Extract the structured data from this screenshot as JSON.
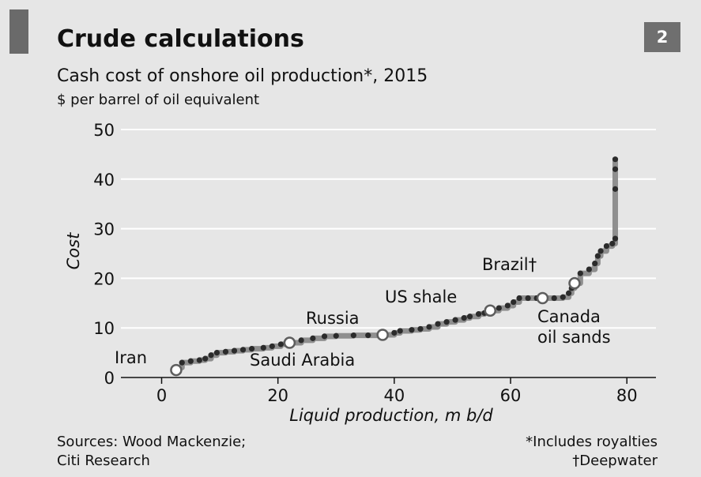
{
  "header": {
    "title": "Crude calculations",
    "subtitle": "Cash cost of onshore oil production*, 2015",
    "unit": "$ per barrel of oil equivalent",
    "chart_number": "2"
  },
  "footer": {
    "sources_line1": "Sources: Wood Mackenzie;",
    "sources_line2": "Citi Research",
    "note1": "*Includes royalties",
    "note2": "†Deepwater"
  },
  "colors": {
    "background": "#e6e6e6",
    "step_line": "#8f8f8f",
    "dots": "#2b2b2b",
    "highlight_fill": "#ffffff",
    "highlight_stroke": "#5e5e5e",
    "gridline": "#ffffff"
  },
  "chart_data": {
    "type": "line",
    "title": "Crude calculations",
    "subtitle": "Cash cost of onshore oil production*, 2015",
    "xlabel": "Liquid production, m b/d",
    "ylabel": "Cost",
    "unit": "$ per barrel of oil equivalent",
    "xlim": [
      -7,
      85
    ],
    "ylim": [
      0,
      50
    ],
    "xticks": [
      0,
      20,
      40,
      60,
      80
    ],
    "yticks": [
      0,
      10,
      20,
      30,
      40,
      50
    ],
    "grid": true,
    "series": [
      {
        "points": [
          [
            2.5,
            2.0
          ],
          [
            3.5,
            3.0
          ],
          [
            5.0,
            3.3
          ],
          [
            6.5,
            3.5
          ],
          [
            7.5,
            3.8
          ],
          [
            8.5,
            4.5
          ],
          [
            9.5,
            5.0
          ],
          [
            11.0,
            5.2
          ],
          [
            12.5,
            5.4
          ],
          [
            14.0,
            5.6
          ],
          [
            15.5,
            5.8
          ],
          [
            17.5,
            6.0
          ],
          [
            19.0,
            6.3
          ],
          [
            20.5,
            6.7
          ],
          [
            22.0,
            7.0
          ],
          [
            24.0,
            7.5
          ],
          [
            26.0,
            7.9
          ],
          [
            28.0,
            8.3
          ],
          [
            30.0,
            8.4
          ],
          [
            33.0,
            8.5
          ],
          [
            35.5,
            8.5
          ],
          [
            38.0,
            8.6
          ],
          [
            40.0,
            9.0
          ],
          [
            41.0,
            9.4
          ],
          [
            43.0,
            9.6
          ],
          [
            44.5,
            9.8
          ],
          [
            46.0,
            10.2
          ],
          [
            47.5,
            10.8
          ],
          [
            49.0,
            11.2
          ],
          [
            50.5,
            11.6
          ],
          [
            52.0,
            12.0
          ],
          [
            53.0,
            12.3
          ],
          [
            54.5,
            12.8
          ],
          [
            55.5,
            13.0
          ],
          [
            56.5,
            13.5
          ],
          [
            58.0,
            14.0
          ],
          [
            59.5,
            14.5
          ],
          [
            60.5,
            15.2
          ],
          [
            61.5,
            16.0
          ],
          [
            63.0,
            16.0
          ],
          [
            64.5,
            16.0
          ],
          [
            66.0,
            16.0
          ],
          [
            67.5,
            16.0
          ],
          [
            69.0,
            16.2
          ],
          [
            70.0,
            17.0
          ],
          [
            70.5,
            18.0
          ],
          [
            71.0,
            19.0
          ],
          [
            72.0,
            21.0
          ],
          [
            73.5,
            21.8
          ],
          [
            74.5,
            23.0
          ],
          [
            75.0,
            24.5
          ],
          [
            75.5,
            25.5
          ],
          [
            76.5,
            26.5
          ],
          [
            77.5,
            27.0
          ],
          [
            78.0,
            28.0
          ],
          [
            78.0,
            38.0
          ],
          [
            78.0,
            42.0
          ],
          [
            78.0,
            44.0
          ]
        ]
      }
    ],
    "highlights": [
      {
        "label": "Iran",
        "x": 2.5,
        "y": 1.5
      },
      {
        "label": "Saudi Arabia",
        "x": 22.0,
        "y": 7.0
      },
      {
        "label": "Russia",
        "x": 38.0,
        "y": 8.6
      },
      {
        "label": "US shale",
        "x": 56.5,
        "y": 13.5
      },
      {
        "label": "Canada oil sands",
        "x": 65.5,
        "y": 16.0
      },
      {
        "label": "Brazil†",
        "x": 71.0,
        "y": 19.0
      }
    ]
  }
}
